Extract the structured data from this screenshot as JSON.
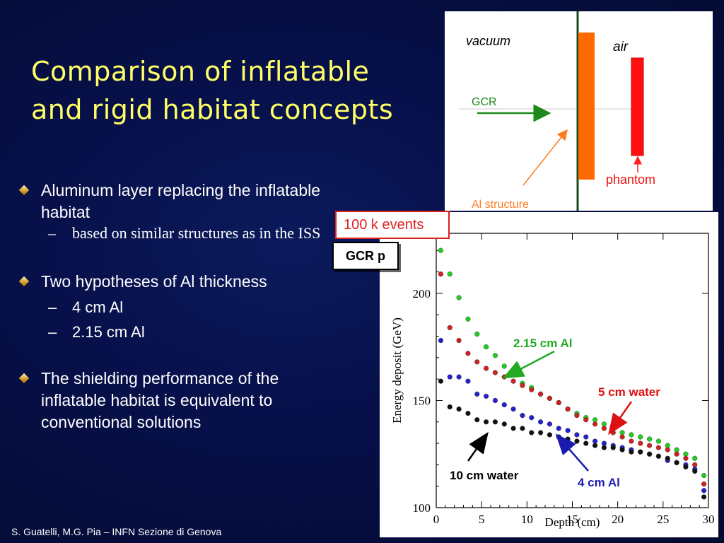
{
  "slide": {
    "title_line1": "Comparison of inflatable",
    "title_line2": "and rigid habitat concepts",
    "footer": "S. Guatelli, M.G. Pia – INFN Sezione di Genova"
  },
  "bullets": [
    {
      "text": "Aluminum layer replacing the inflatable habitat",
      "sub": [
        {
          "text": "based on similar structures as in the ISS"
        }
      ]
    },
    {
      "text": "Two hypotheses of Al thickness",
      "sub": [
        {
          "text": "4 cm Al"
        },
        {
          "text": "2.15 cm Al"
        }
      ]
    },
    {
      "text": "The shielding performance of the inflatable habitat is equivalent to conventional solutions",
      "sub": []
    }
  ],
  "geometry": {
    "vacuum": "vacuum",
    "air": "air",
    "gcr": "GCR",
    "al_structure": "Al structure",
    "phantom": "phantom",
    "colors": {
      "al": "#ff6a00",
      "phantom": "#ff1010",
      "divider": "#1a4a1a",
      "gcr_arrow": "#1e8a1e"
    }
  },
  "callouts": {
    "events": "100 k events",
    "particle": "GCR p"
  },
  "chart_data": {
    "type": "scatter",
    "title": "",
    "xlabel": "Depth (cm)",
    "ylabel": "Energy deposit (GeV)",
    "xlim": [
      0,
      30
    ],
    "ylim": [
      100,
      228
    ],
    "xticks": [
      0,
      5,
      10,
      15,
      20,
      25,
      30
    ],
    "yticks": [
      100,
      150,
      200
    ],
    "grid": false,
    "series": [
      {
        "color": "#22cc22",
        "x": [
          0.5,
          1.5,
          2.5,
          3.5,
          4.5,
          5.5,
          6.5,
          7.5,
          8.5,
          9.5,
          10.5,
          11.5,
          12.5,
          13.5,
          14.5,
          15.5,
          16.5,
          17.5,
          18.5,
          19.5,
          20.5,
          21.5,
          22.5,
          23.5,
          24.5,
          25.5,
          26.5,
          27.5,
          28.5,
          29.5
        ],
        "y": [
          220,
          209,
          198,
          188,
          181,
          175,
          171,
          166,
          162,
          158,
          156,
          153,
          151,
          149,
          146,
          144,
          142,
          141,
          139,
          138,
          135,
          134,
          133,
          132,
          131,
          129,
          127,
          125,
          123,
          115
        ]
      },
      {
        "color": "#cc2222",
        "x": [
          0.5,
          1.5,
          2.5,
          3.5,
          4.5,
          5.5,
          6.5,
          7.5,
          8.5,
          9.5,
          10.5,
          11.5,
          12.5,
          13.5,
          14.5,
          15.5,
          16.5,
          17.5,
          18.5,
          19.5,
          20.5,
          21.5,
          22.5,
          23.5,
          24.5,
          25.5,
          26.5,
          27.5,
          28.5,
          29.5
        ],
        "y": [
          209,
          184,
          178,
          172,
          168,
          165,
          163,
          161,
          159,
          157,
          155,
          153,
          151,
          149,
          146,
          143,
          141,
          139,
          137,
          135,
          133,
          131,
          130,
          129,
          128,
          127,
          125,
          123,
          120,
          111
        ]
      },
      {
        "color": "#2222cc",
        "x": [
          0.5,
          1.5,
          2.5,
          3.5,
          4.5,
          5.5,
          6.5,
          7.5,
          8.5,
          9.5,
          10.5,
          11.5,
          12.5,
          13.5,
          14.5,
          15.5,
          16.5,
          17.5,
          18.5,
          19.5,
          20.5,
          21.5,
          22.5,
          23.5,
          24.5,
          25.5,
          26.5,
          27.5,
          28.5,
          29.5
        ],
        "y": [
          178,
          161,
          161,
          159,
          153,
          152,
          150,
          148,
          146,
          143,
          142,
          140,
          139,
          137,
          136,
          134,
          133,
          131,
          130,
          129,
          128,
          127,
          126,
          125,
          124,
          122,
          121,
          120,
          118,
          108
        ]
      },
      {
        "color": "#111111",
        "x": [
          0.5,
          1.5,
          2.5,
          3.5,
          4.5,
          5.5,
          6.5,
          7.5,
          8.5,
          9.5,
          10.5,
          11.5,
          12.5,
          13.5,
          14.5,
          15.5,
          16.5,
          17.5,
          18.5,
          19.5,
          20.5,
          21.5,
          22.5,
          23.5,
          24.5,
          25.5,
          26.5,
          27.5,
          28.5,
          29.5
        ],
        "y": [
          159,
          147,
          146,
          144,
          141,
          140,
          140,
          139,
          137,
          137,
          135,
          135,
          134,
          133,
          132,
          131,
          130,
          129,
          128,
          128,
          127,
          126,
          126,
          125,
          124,
          123,
          121,
          119,
          117,
          105
        ]
      }
    ],
    "annotations": [
      {
        "text": "2.15 cm Al",
        "color": "#22aa22"
      },
      {
        "text": "5 cm water",
        "color": "#dd1111"
      },
      {
        "text": "10 cm water",
        "color": "#000000"
      },
      {
        "text": "4 cm Al",
        "color": "#1a1ab0"
      }
    ]
  }
}
